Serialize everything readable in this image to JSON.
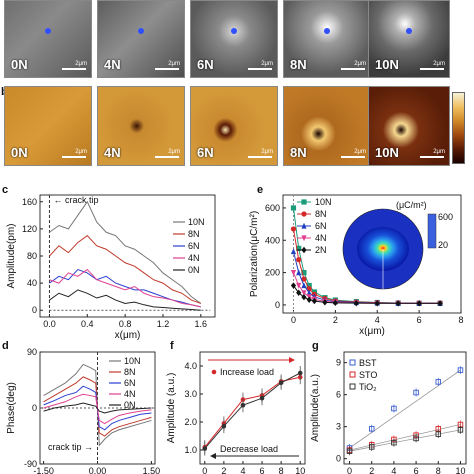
{
  "panel_a": {
    "tiles": [
      {
        "label": "0N",
        "scale": "2μm"
      },
      {
        "label": "4N",
        "scale": "2μm"
      },
      {
        "label": "6N",
        "scale": "2μm"
      },
      {
        "label": "8N",
        "scale": "2μm"
      },
      {
        "label": "10N",
        "scale": "2μm"
      }
    ]
  },
  "panel_b": {
    "letter": "b",
    "tiles": [
      {
        "label": "0N",
        "scale": "2μm"
      },
      {
        "label": "4N",
        "scale": "2μm"
      },
      {
        "label": "6N",
        "scale": "2μm"
      },
      {
        "label": "8N",
        "scale": "2μm"
      },
      {
        "label": "10N",
        "scale": "2μm"
      }
    ]
  },
  "panel_c": {
    "letter": "c",
    "annotation": "crack tip"
  },
  "panel_d": {
    "letter": "d",
    "annotation": "crack tip"
  },
  "panel_e": {
    "letter": "e",
    "inset_unit": "(μC/m²)",
    "inset_max": "600",
    "inset_min": "20"
  },
  "panel_f": {
    "letter": "f",
    "increase": "Increase load",
    "decrease": "Decrease load"
  },
  "panel_g": {
    "letter": "g"
  },
  "chart_data": [
    {
      "id": "c",
      "type": "line",
      "xlabel": "x(μm)",
      "ylabel": "Amplitude(pm)",
      "xlim": [
        -0.1,
        1.75
      ],
      "ylim": [
        -10,
        170
      ],
      "xticks": [
        "0.0",
        "0.4",
        "0.8",
        "1.2",
        "1.6"
      ],
      "yticks": [
        "0",
        "40",
        "80",
        "120",
        "160"
      ],
      "series": [
        {
          "name": "10N",
          "color": "#777777",
          "x": [
            0,
            0.1,
            0.2,
            0.3,
            0.4,
            0.5,
            0.6,
            0.7,
            0.8,
            0.9,
            1.0,
            1.1,
            1.2,
            1.3,
            1.4,
            1.5,
            1.6
          ],
          "values": [
            115,
            125,
            120,
            140,
            160,
            130,
            115,
            110,
            95,
            90,
            80,
            70,
            55,
            45,
            35,
            20,
            10
          ]
        },
        {
          "name": "8N",
          "color": "#c0392b",
          "x": [
            0,
            0.1,
            0.2,
            0.3,
            0.4,
            0.5,
            0.6,
            0.7,
            0.8,
            0.9,
            1.0,
            1.1,
            1.2,
            1.3,
            1.4,
            1.5,
            1.6
          ],
          "values": [
            80,
            95,
            85,
            100,
            110,
            95,
            90,
            80,
            70,
            65,
            55,
            45,
            40,
            30,
            25,
            15,
            10
          ]
        },
        {
          "name": "6N",
          "color": "#2a3fd1",
          "x": [
            0,
            0.1,
            0.2,
            0.3,
            0.4,
            0.5,
            0.6,
            0.7,
            0.8,
            0.9,
            1.0,
            1.1,
            1.2,
            1.3,
            1.4,
            1.5,
            1.6
          ],
          "values": [
            40,
            50,
            45,
            60,
            55,
            45,
            50,
            40,
            35,
            30,
            30,
            25,
            20,
            15,
            12,
            8,
            5
          ]
        },
        {
          "name": "4N",
          "color": "#e0408f",
          "x": [
            0,
            0.1,
            0.2,
            0.3,
            0.4,
            0.5,
            0.6,
            0.7,
            0.8,
            0.9,
            1.0,
            1.1,
            1.2,
            1.3,
            1.4,
            1.5,
            1.6
          ],
          "values": [
            45,
            40,
            55,
            50,
            60,
            45,
            40,
            35,
            30,
            35,
            25,
            20,
            18,
            15,
            10,
            8,
            5
          ]
        },
        {
          "name": "0N",
          "color": "#222222",
          "x": [
            0,
            0.1,
            0.2,
            0.3,
            0.4,
            0.5,
            0.6,
            0.7,
            0.8,
            0.9,
            1.0,
            1.1,
            1.2,
            1.3,
            1.4,
            1.5,
            1.6
          ],
          "values": [
            15,
            25,
            20,
            30,
            25,
            18,
            22,
            15,
            10,
            12,
            8,
            5,
            4,
            3,
            2,
            1,
            0
          ]
        }
      ]
    },
    {
      "id": "d",
      "type": "line",
      "xlabel": "",
      "ylabel": "Phase(deg)",
      "xlim": [
        -1.6,
        1.6
      ],
      "ylim": [
        -90,
        90
      ],
      "xticks": [
        "-1.50",
        "0.00",
        "1.50"
      ],
      "yticks": [
        "-90",
        "0",
        "90"
      ],
      "series": [
        {
          "name": "10N",
          "color": "#777777",
          "x": [
            -1.5,
            -1.2,
            -0.9,
            -0.6,
            -0.4,
            -0.2,
            -0.05,
            0.05,
            0.2,
            0.4,
            0.6,
            0.9,
            1.2,
            1.5
          ],
          "values": [
            20,
            30,
            40,
            55,
            70,
            65,
            60,
            -60,
            -50,
            -40,
            -35,
            -30,
            -25,
            -20
          ]
        },
        {
          "name": "8N",
          "color": "#c0392b",
          "x": [
            -1.5,
            -1.2,
            -0.9,
            -0.6,
            -0.4,
            -0.2,
            -0.05,
            0.05,
            0.2,
            0.4,
            0.6,
            0.9,
            1.2,
            1.5
          ],
          "values": [
            10,
            20,
            30,
            40,
            50,
            45,
            40,
            -40,
            -45,
            -35,
            -30,
            -25,
            -20,
            -15
          ]
        },
        {
          "name": "6N",
          "color": "#2a3fd1",
          "x": [
            -1.5,
            -1.2,
            -0.9,
            -0.6,
            -0.4,
            -0.2,
            -0.05,
            0.05,
            0.2,
            0.4,
            0.6,
            0.9,
            1.2,
            1.5
          ],
          "values": [
            5,
            12,
            20,
            25,
            35,
            30,
            25,
            -30,
            -35,
            -25,
            -20,
            -15,
            -10,
            -8
          ]
        },
        {
          "name": "4N",
          "color": "#e0408f",
          "x": [
            -1.5,
            -1.2,
            -0.9,
            -0.6,
            -0.4,
            -0.2,
            -0.05,
            0.05,
            0.2,
            0.4,
            0.6,
            0.9,
            1.2,
            1.5
          ],
          "values": [
            0,
            5,
            10,
            18,
            22,
            20,
            18,
            -20,
            -25,
            -18,
            -12,
            -8,
            -5,
            -3
          ]
        },
        {
          "name": "0N",
          "color": "#222222",
          "x": [
            -1.5,
            -1.2,
            -0.9,
            -0.6,
            -0.4,
            -0.2,
            -0.05,
            0.05,
            0.2,
            0.4,
            0.6,
            0.9,
            1.2,
            1.5
          ],
          "values": [
            -5,
            0,
            3,
            5,
            8,
            5,
            3,
            -5,
            -8,
            -5,
            -3,
            -2,
            -1,
            0
          ]
        }
      ]
    },
    {
      "id": "e",
      "type": "line",
      "xlabel": "x(μm)",
      "ylabel": "Polarization(μC/m²)",
      "xlim": [
        -0.5,
        8
      ],
      "ylim": [
        -50,
        680
      ],
      "xticks": [
        "0",
        "2",
        "4",
        "6",
        "8"
      ],
      "yticks": [
        "0",
        "200",
        "400",
        "600"
      ],
      "series": [
        {
          "name": "10N",
          "color": "#1a9c7a",
          "marker": "square",
          "x": [
            0,
            0.25,
            0.5,
            0.75,
            1,
            1.5,
            2,
            3,
            4,
            5,
            6,
            7
          ],
          "values": [
            600,
            350,
            200,
            120,
            80,
            45,
            30,
            20,
            15,
            12,
            10,
            10
          ]
        },
        {
          "name": "8N",
          "color": "#d62728",
          "marker": "circle",
          "x": [
            0,
            0.25,
            0.5,
            0.75,
            1,
            1.5,
            2,
            3,
            4,
            5,
            6,
            7
          ],
          "values": [
            470,
            280,
            160,
            100,
            65,
            40,
            25,
            18,
            14,
            11,
            10,
            10
          ]
        },
        {
          "name": "6N",
          "color": "#1f3fbf",
          "marker": "triangle",
          "x": [
            0,
            0.25,
            0.5,
            0.75,
            1,
            1.5,
            2,
            3,
            4,
            5,
            6,
            7
          ],
          "values": [
            330,
            200,
            120,
            75,
            50,
            30,
            20,
            15,
            12,
            10,
            10,
            10
          ]
        },
        {
          "name": "4N",
          "color": "#e0408f",
          "marker": "triangle-down",
          "x": [
            0,
            0.25,
            0.5,
            0.75,
            1,
            1.5,
            2,
            3,
            4,
            5,
            6,
            7
          ],
          "values": [
            200,
            120,
            75,
            50,
            35,
            22,
            16,
            12,
            10,
            10,
            10,
            10
          ]
        },
        {
          "name": "2N",
          "color": "#111111",
          "marker": "diamond",
          "x": [
            0,
            0.25,
            0.5,
            0.75,
            1,
            1.5,
            2,
            3,
            4,
            5,
            6,
            7
          ],
          "values": [
            120,
            75,
            48,
            32,
            24,
            16,
            13,
            11,
            10,
            10,
            10,
            10
          ]
        }
      ]
    },
    {
      "id": "f",
      "type": "line",
      "xlabel": "",
      "ylabel": "Amplitude (a.u.)",
      "xlim": [
        -0.5,
        10.5
      ],
      "ylim": [
        0.5,
        4.5
      ],
      "xticks": [
        "0",
        "2",
        "4",
        "6",
        "8",
        "10"
      ],
      "yticks": [
        "1.0",
        "2.0",
        "3.0",
        "4.0"
      ],
      "series": [
        {
          "name": "Increase load",
          "color": "#d62728",
          "x": [
            0,
            2,
            4,
            6,
            8,
            10
          ],
          "values": [
            1.1,
            1.95,
            2.8,
            2.95,
            3.45,
            3.6
          ]
        },
        {
          "name": "Decrease load",
          "color": "#333333",
          "x": [
            0,
            2,
            4,
            6,
            8,
            10
          ],
          "values": [
            1.05,
            1.85,
            2.6,
            2.85,
            3.4,
            3.75
          ]
        }
      ]
    },
    {
      "id": "g",
      "type": "scatter",
      "xlabel": "",
      "ylabel": "Amplitude(a.u.)",
      "xlim": [
        -0.5,
        10.5
      ],
      "ylim": [
        -0.5,
        10
      ],
      "xticks": [
        "0",
        "2",
        "4",
        "6",
        "8",
        "10"
      ],
      "yticks": [
        "0",
        "3",
        "6",
        "9"
      ],
      "series": [
        {
          "name": "BST",
          "color": "#3a5fcd",
          "x": [
            0,
            2,
            4,
            6,
            8,
            10
          ],
          "values": [
            1.0,
            2.8,
            4.7,
            6.2,
            7.2,
            8.3
          ]
        },
        {
          "name": "STO",
          "color": "#d62728",
          "x": [
            0,
            2,
            4,
            6,
            8,
            10
          ],
          "values": [
            0.8,
            1.3,
            1.8,
            2.2,
            2.8,
            3.2
          ]
        },
        {
          "name": "TiO₂",
          "color": "#333333",
          "x": [
            0,
            2,
            4,
            6,
            8,
            10
          ],
          "values": [
            0.7,
            1.1,
            1.5,
            1.9,
            2.3,
            2.7
          ]
        }
      ]
    }
  ]
}
